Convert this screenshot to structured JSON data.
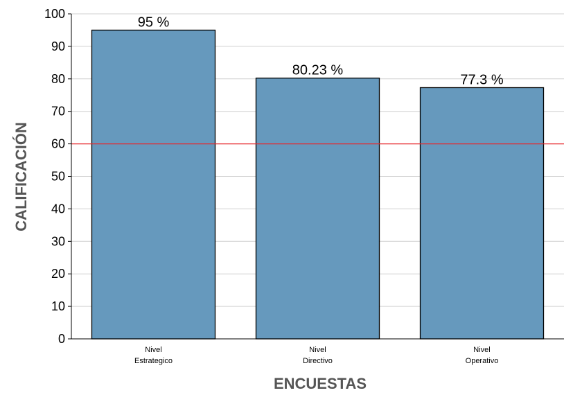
{
  "chart_data": {
    "type": "bar",
    "categories": [
      [
        "Nivel",
        "Estrategico"
      ],
      [
        "Nivel",
        "Directivo"
      ],
      [
        "Nivel",
        "Operativo"
      ]
    ],
    "values": [
      95,
      80.23,
      77.3
    ],
    "data_labels": [
      "95 %",
      "80.23 %",
      "77.3 %"
    ],
    "xlabel": "ENCUESTAS",
    "ylabel": "CALIFICACIÓN",
    "ylim": [
      0,
      100
    ],
    "yticks": [
      0,
      10,
      20,
      30,
      40,
      50,
      60,
      70,
      80,
      90,
      100
    ],
    "grid": true,
    "reference_line": {
      "value": 60,
      "color": "#e8262b"
    },
    "colors": {
      "bar": "#6699bd",
      "bar_edge": "#000000",
      "grid": "#d0d0d0",
      "axis": "#000000"
    }
  }
}
